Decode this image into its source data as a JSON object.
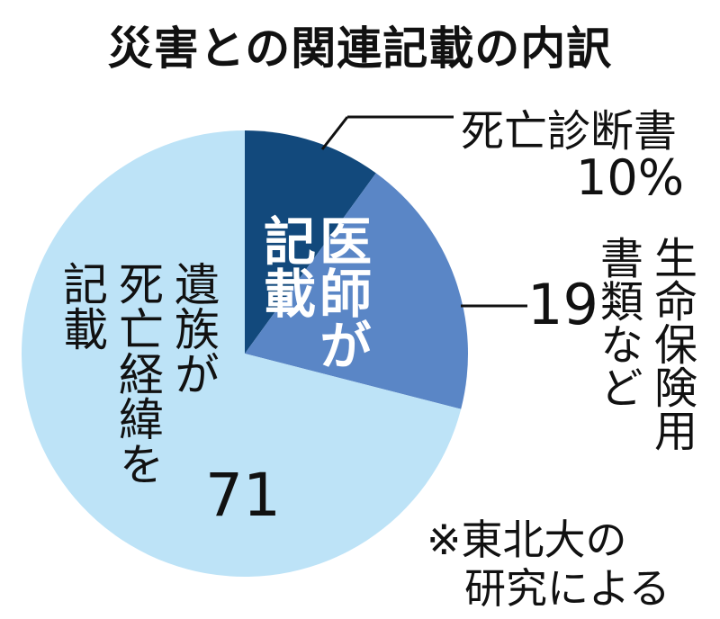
{
  "title": "災害との関連記載の内訳",
  "chart_data": {
    "type": "pie",
    "unit": "%",
    "slices": [
      {
        "label": "死亡診断書",
        "value": 10,
        "value_text": "10%",
        "color": "#12497c"
      },
      {
        "label": "生命保険用書類など",
        "value": 19,
        "value_text": "19",
        "color": "#5a86c6"
      },
      {
        "label": "遺族が死亡経緯を記載",
        "value": 71,
        "value_text": "71",
        "color": "#bde3f7"
      }
    ]
  },
  "annotations": {
    "doctor_label_col1": "医師が",
    "doctor_label_col2": "記載",
    "insurance_label_col1": "生命保険用",
    "insurance_label_col2": "書類など",
    "family_label_col1": "遺族が",
    "family_label_col2": "死亡経緯を",
    "family_label_col3": "記載"
  },
  "source_note_line1": "※東北大の",
  "source_note_line2": "研究による"
}
